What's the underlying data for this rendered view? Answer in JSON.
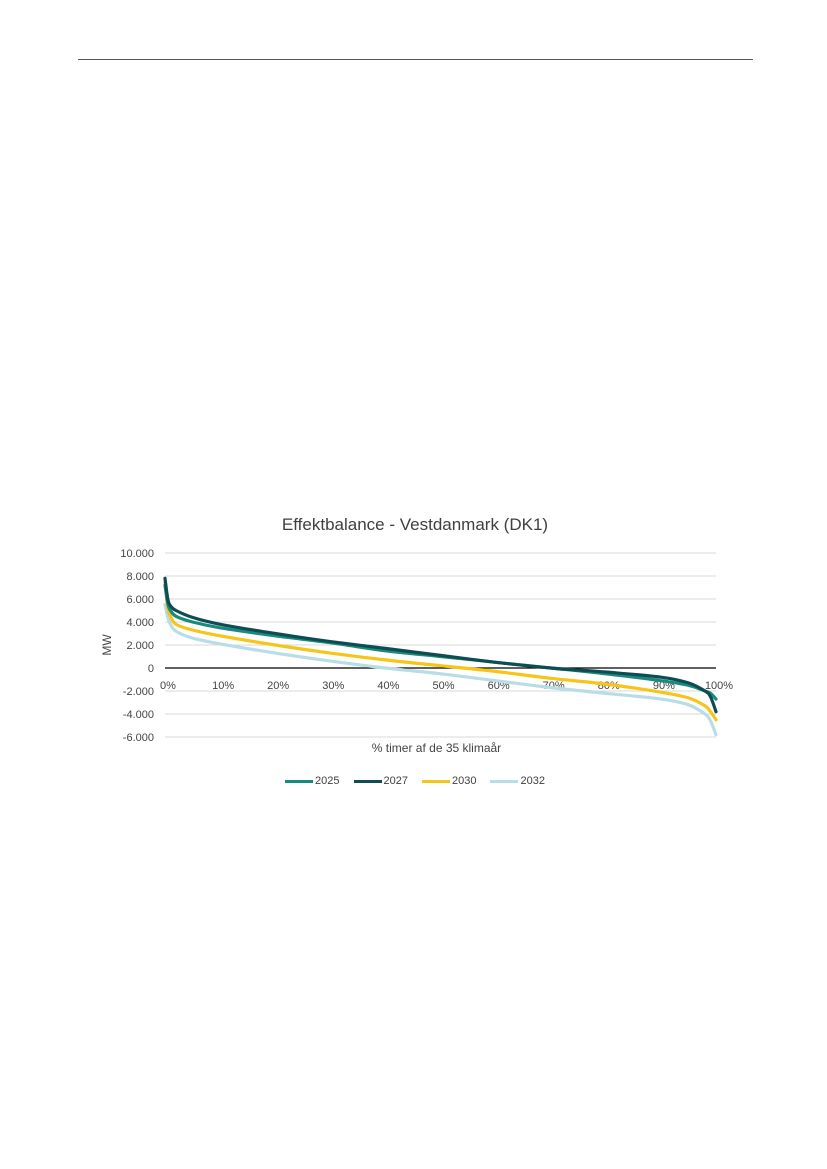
{
  "chart_data": {
    "type": "line",
    "title": "Effektbalance - Vestdanmark (DK1)",
    "xlabel": "% timer af de 35 klimaår",
    "ylabel": "MW",
    "x_ticks": [
      "0%",
      "10%",
      "20%",
      "30%",
      "40%",
      "50%",
      "60%",
      "70%",
      "80%",
      "90%",
      "100%"
    ],
    "y_ticks": [
      "10.000",
      "8.000",
      "6.000",
      "4.000",
      "2.000",
      "0",
      "-2.000",
      "-4.000",
      "-6.000"
    ],
    "xlim": [
      0,
      100
    ],
    "ylim": [
      -6000,
      10000
    ],
    "grid": true,
    "legend_position": "bottom",
    "series": [
      {
        "name": "2025",
        "color": "#1a8a7d",
        "x": [
          0,
          0.5,
          1,
          2,
          5,
          10,
          20,
          30,
          40,
          50,
          60,
          70,
          80,
          90,
          95,
          98,
          99,
          100
        ],
        "y": [
          7200,
          5600,
          5000,
          4500,
          4000,
          3500,
          2800,
          2200,
          1500,
          1000,
          500,
          0,
          -500,
          -1100,
          -1500,
          -2000,
          -2200,
          -2700
        ]
      },
      {
        "name": "2027",
        "color": "#0e4c54",
        "x": [
          0,
          0.5,
          1,
          2,
          5,
          10,
          20,
          30,
          40,
          50,
          60,
          70,
          80,
          90,
          95,
          98,
          99,
          100
        ],
        "y": [
          7800,
          6000,
          5400,
          5000,
          4400,
          3800,
          3000,
          2300,
          1700,
          1100,
          500,
          0,
          -350,
          -800,
          -1300,
          -2000,
          -2500,
          -3800
        ]
      },
      {
        "name": "2030",
        "color": "#f5c518",
        "x": [
          0,
          0.5,
          1,
          2,
          5,
          10,
          20,
          30,
          40,
          50,
          60,
          70,
          80,
          90,
          95,
          98,
          99,
          100
        ],
        "y": [
          7500,
          5200,
          4500,
          3800,
          3300,
          2800,
          2000,
          1300,
          700,
          200,
          -300,
          -900,
          -1400,
          -2100,
          -2600,
          -3300,
          -3800,
          -4500
        ]
      },
      {
        "name": "2032",
        "color": "#b8dde6",
        "x": [
          0,
          0.5,
          1,
          2,
          5,
          10,
          20,
          30,
          40,
          50,
          60,
          70,
          80,
          90,
          95,
          98,
          99,
          100
        ],
        "y": [
          5500,
          4400,
          3800,
          3200,
          2600,
          2100,
          1300,
          600,
          0,
          -500,
          -1100,
          -1700,
          -2200,
          -2700,
          -3200,
          -4000,
          -4600,
          -5800
        ]
      }
    ]
  }
}
